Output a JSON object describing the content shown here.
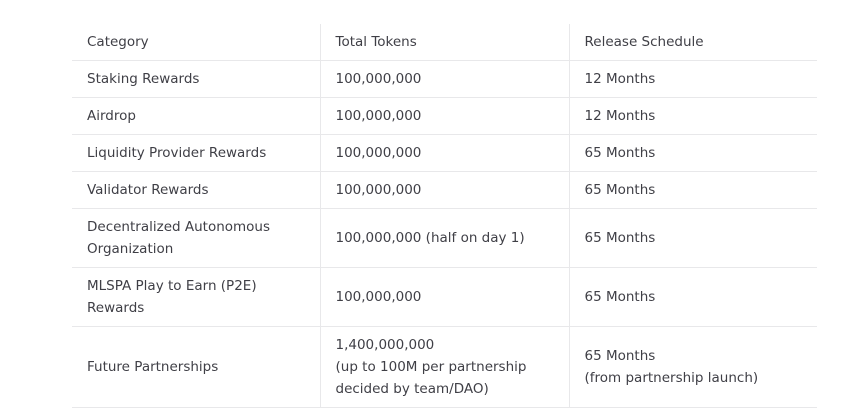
{
  "table": {
    "headers": [
      "Category",
      "Total Tokens",
      "Release Schedule"
    ],
    "rows": [
      {
        "category": [
          "Staking Rewards"
        ],
        "tokens": [
          "100,000,000"
        ],
        "schedule": [
          "12 Months"
        ]
      },
      {
        "category": [
          "Airdrop"
        ],
        "tokens": [
          "100,000,000"
        ],
        "schedule": [
          "12 Months"
        ]
      },
      {
        "category": [
          "Liquidity Provider Rewards"
        ],
        "tokens": [
          "100,000,000"
        ],
        "schedule": [
          "65 Months"
        ]
      },
      {
        "category": [
          "Validator Rewards"
        ],
        "tokens": [
          "100,000,000"
        ],
        "schedule": [
          "65 Months"
        ]
      },
      {
        "category": [
          "Decentralized Autonomous",
          "Organization"
        ],
        "tokens": [
          "100,000,000 (half on day 1)"
        ],
        "schedule": [
          "65 Months"
        ]
      },
      {
        "category": [
          "MLSPA Play to Earn (P2E)",
          "Rewards"
        ],
        "tokens": [
          "100,000,000"
        ],
        "schedule": [
          "65 Months"
        ]
      },
      {
        "category": [
          "Future Partnerships"
        ],
        "tokens": [
          "1,400,000,000",
          "(up to 100M per partnership",
          "decided by team/DAO)"
        ],
        "schedule": [
          "65 Months",
          "(from partnership launch)"
        ]
      }
    ]
  }
}
